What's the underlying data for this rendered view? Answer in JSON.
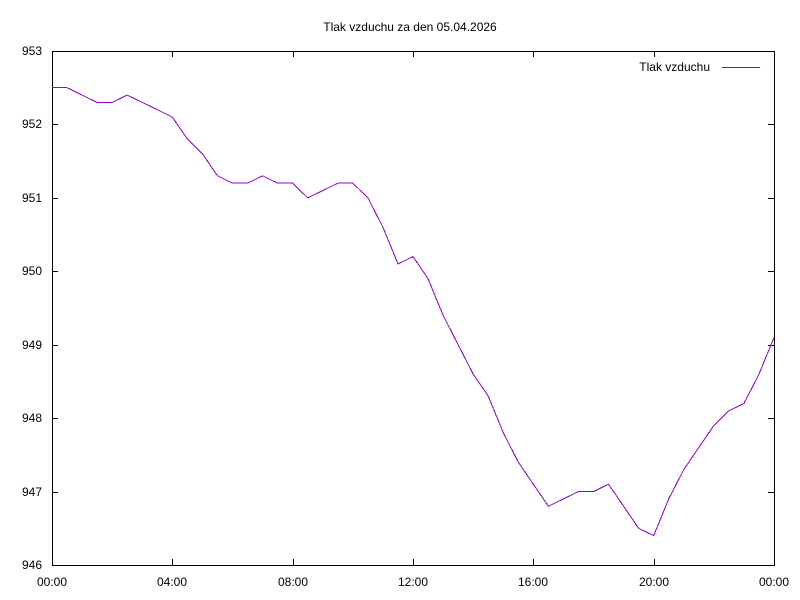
{
  "chart_data": {
    "type": "line",
    "title": "Tlak vzduchu za den 05.04.2026",
    "xlabel": "",
    "ylabel": "",
    "xlim": [
      "00:00",
      "24:00"
    ],
    "ylim": [
      946,
      953
    ],
    "x_ticks": [
      "00:00",
      "04:00",
      "08:00",
      "12:00",
      "16:00",
      "20:00",
      "00:00"
    ],
    "y_ticks": [
      "946",
      "947",
      "948",
      "949",
      "950",
      "951",
      "952",
      "953"
    ],
    "grid": false,
    "legend_position": "top-right",
    "series": [
      {
        "name": "Tlak vzduchu",
        "color": "#9400d3",
        "x": [
          "00:00",
          "00:30",
          "01:00",
          "01:30",
          "02:00",
          "02:30",
          "03:00",
          "03:30",
          "04:00",
          "04:30",
          "05:00",
          "05:30",
          "06:00",
          "06:30",
          "07:00",
          "07:30",
          "08:00",
          "08:30",
          "09:00",
          "09:30",
          "10:00",
          "10:30",
          "11:00",
          "11:30",
          "12:00",
          "12:30",
          "13:00",
          "13:30",
          "14:00",
          "14:30",
          "15:00",
          "15:30",
          "16:00",
          "16:30",
          "17:00",
          "17:30",
          "18:00",
          "18:30",
          "19:00",
          "19:30",
          "20:00",
          "20:30",
          "21:00",
          "21:30",
          "22:00",
          "22:30",
          "23:00",
          "23:30",
          "24:00"
        ],
        "values": [
          952.5,
          952.5,
          952.4,
          952.3,
          952.3,
          952.4,
          952.3,
          952.2,
          952.1,
          951.8,
          951.6,
          951.3,
          951.2,
          951.2,
          951.3,
          951.2,
          951.2,
          951.0,
          951.1,
          951.2,
          951.2,
          951.0,
          950.6,
          950.1,
          950.2,
          949.9,
          949.4,
          949.0,
          948.6,
          948.3,
          947.8,
          947.4,
          947.1,
          946.8,
          946.9,
          947.0,
          947.0,
          947.1,
          946.8,
          946.5,
          946.4,
          946.9,
          947.3,
          947.6,
          947.9,
          948.1,
          948.2,
          948.6,
          949.1
        ]
      }
    ]
  }
}
